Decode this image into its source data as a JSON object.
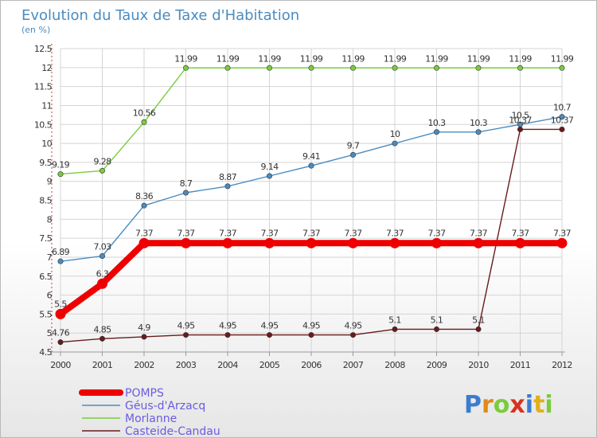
{
  "title": "Evolution du Taux de Taxe d'Habitation",
  "subtitle": "(en %)",
  "logo_text": "Proxiti",
  "chart_data": {
    "type": "line",
    "title": "Evolution du Taux de Taxe d'Habitation",
    "subtitle": "(en %)",
    "xlabel": "",
    "ylabel": "",
    "x": [
      "2000",
      "2001",
      "2002",
      "2003",
      "2004",
      "2005",
      "2006",
      "2007",
      "2008",
      "2009",
      "2010",
      "2011",
      "2012"
    ],
    "ylim": [
      4.5,
      12.5
    ],
    "yticks": [
      "4.5",
      "5",
      "5.5",
      "6",
      "6.5",
      "7",
      "7.5",
      "8",
      "8.5",
      "9",
      "9.5",
      "10",
      "10.5",
      "11",
      "11.5",
      "12",
      "12.5"
    ],
    "grid": true,
    "legend_position": "bottom-left",
    "series": [
      {
        "name": "POMPS",
        "color": "#ee0000",
        "emphasis": true,
        "values": [
          5.5,
          6.3,
          7.37,
          7.37,
          7.37,
          7.37,
          7.37,
          7.37,
          7.37,
          7.37,
          7.37,
          7.37,
          7.37
        ],
        "labels": [
          "5.5",
          "6.3",
          "7.37",
          "7.37",
          "7.37",
          "7.37",
          "7.37",
          "7.37",
          "7.37",
          "7.37",
          "7.37",
          "7.37",
          "7.37"
        ]
      },
      {
        "name": "Géus-d'Arzacq",
        "color": "#4a8cc0",
        "emphasis": false,
        "values": [
          6.89,
          7.03,
          8.36,
          8.7,
          8.87,
          9.14,
          9.41,
          9.7,
          10,
          10.3,
          10.3,
          10.5,
          10.7
        ],
        "labels": [
          "6.89",
          "7.03",
          "8.36",
          "8.7",
          "8.87",
          "9.14",
          "9.41",
          "9.7",
          "10",
          "10.3",
          "10.3",
          "10.5",
          "10.7"
        ]
      },
      {
        "name": "Morlanne",
        "color": "#7acc3c",
        "emphasis": false,
        "values": [
          9.19,
          9.28,
          10.56,
          11.99,
          11.99,
          11.99,
          11.99,
          11.99,
          11.99,
          11.99,
          11.99,
          11.99,
          11.99
        ],
        "labels": [
          "9.19",
          "9.28",
          "10.56",
          "11.99",
          "11.99",
          "11.99",
          "11.99",
          "11.99",
          "11.99",
          "11.99",
          "11.99",
          "11.99",
          "11.99"
        ]
      },
      {
        "name": "Casteide-Candau",
        "color": "#6a1a1a",
        "emphasis": false,
        "values": [
          4.76,
          4.85,
          4.9,
          4.95,
          4.95,
          4.95,
          4.95,
          4.95,
          5.1,
          5.1,
          5.1,
          10.37,
          10.37
        ],
        "labels": [
          "4.76",
          "4.85",
          "4.9",
          "4.95",
          "4.95",
          "4.95",
          "4.95",
          "4.95",
          "5.1",
          "5.1",
          "5.1",
          "10.37",
          "10.37"
        ]
      }
    ]
  }
}
